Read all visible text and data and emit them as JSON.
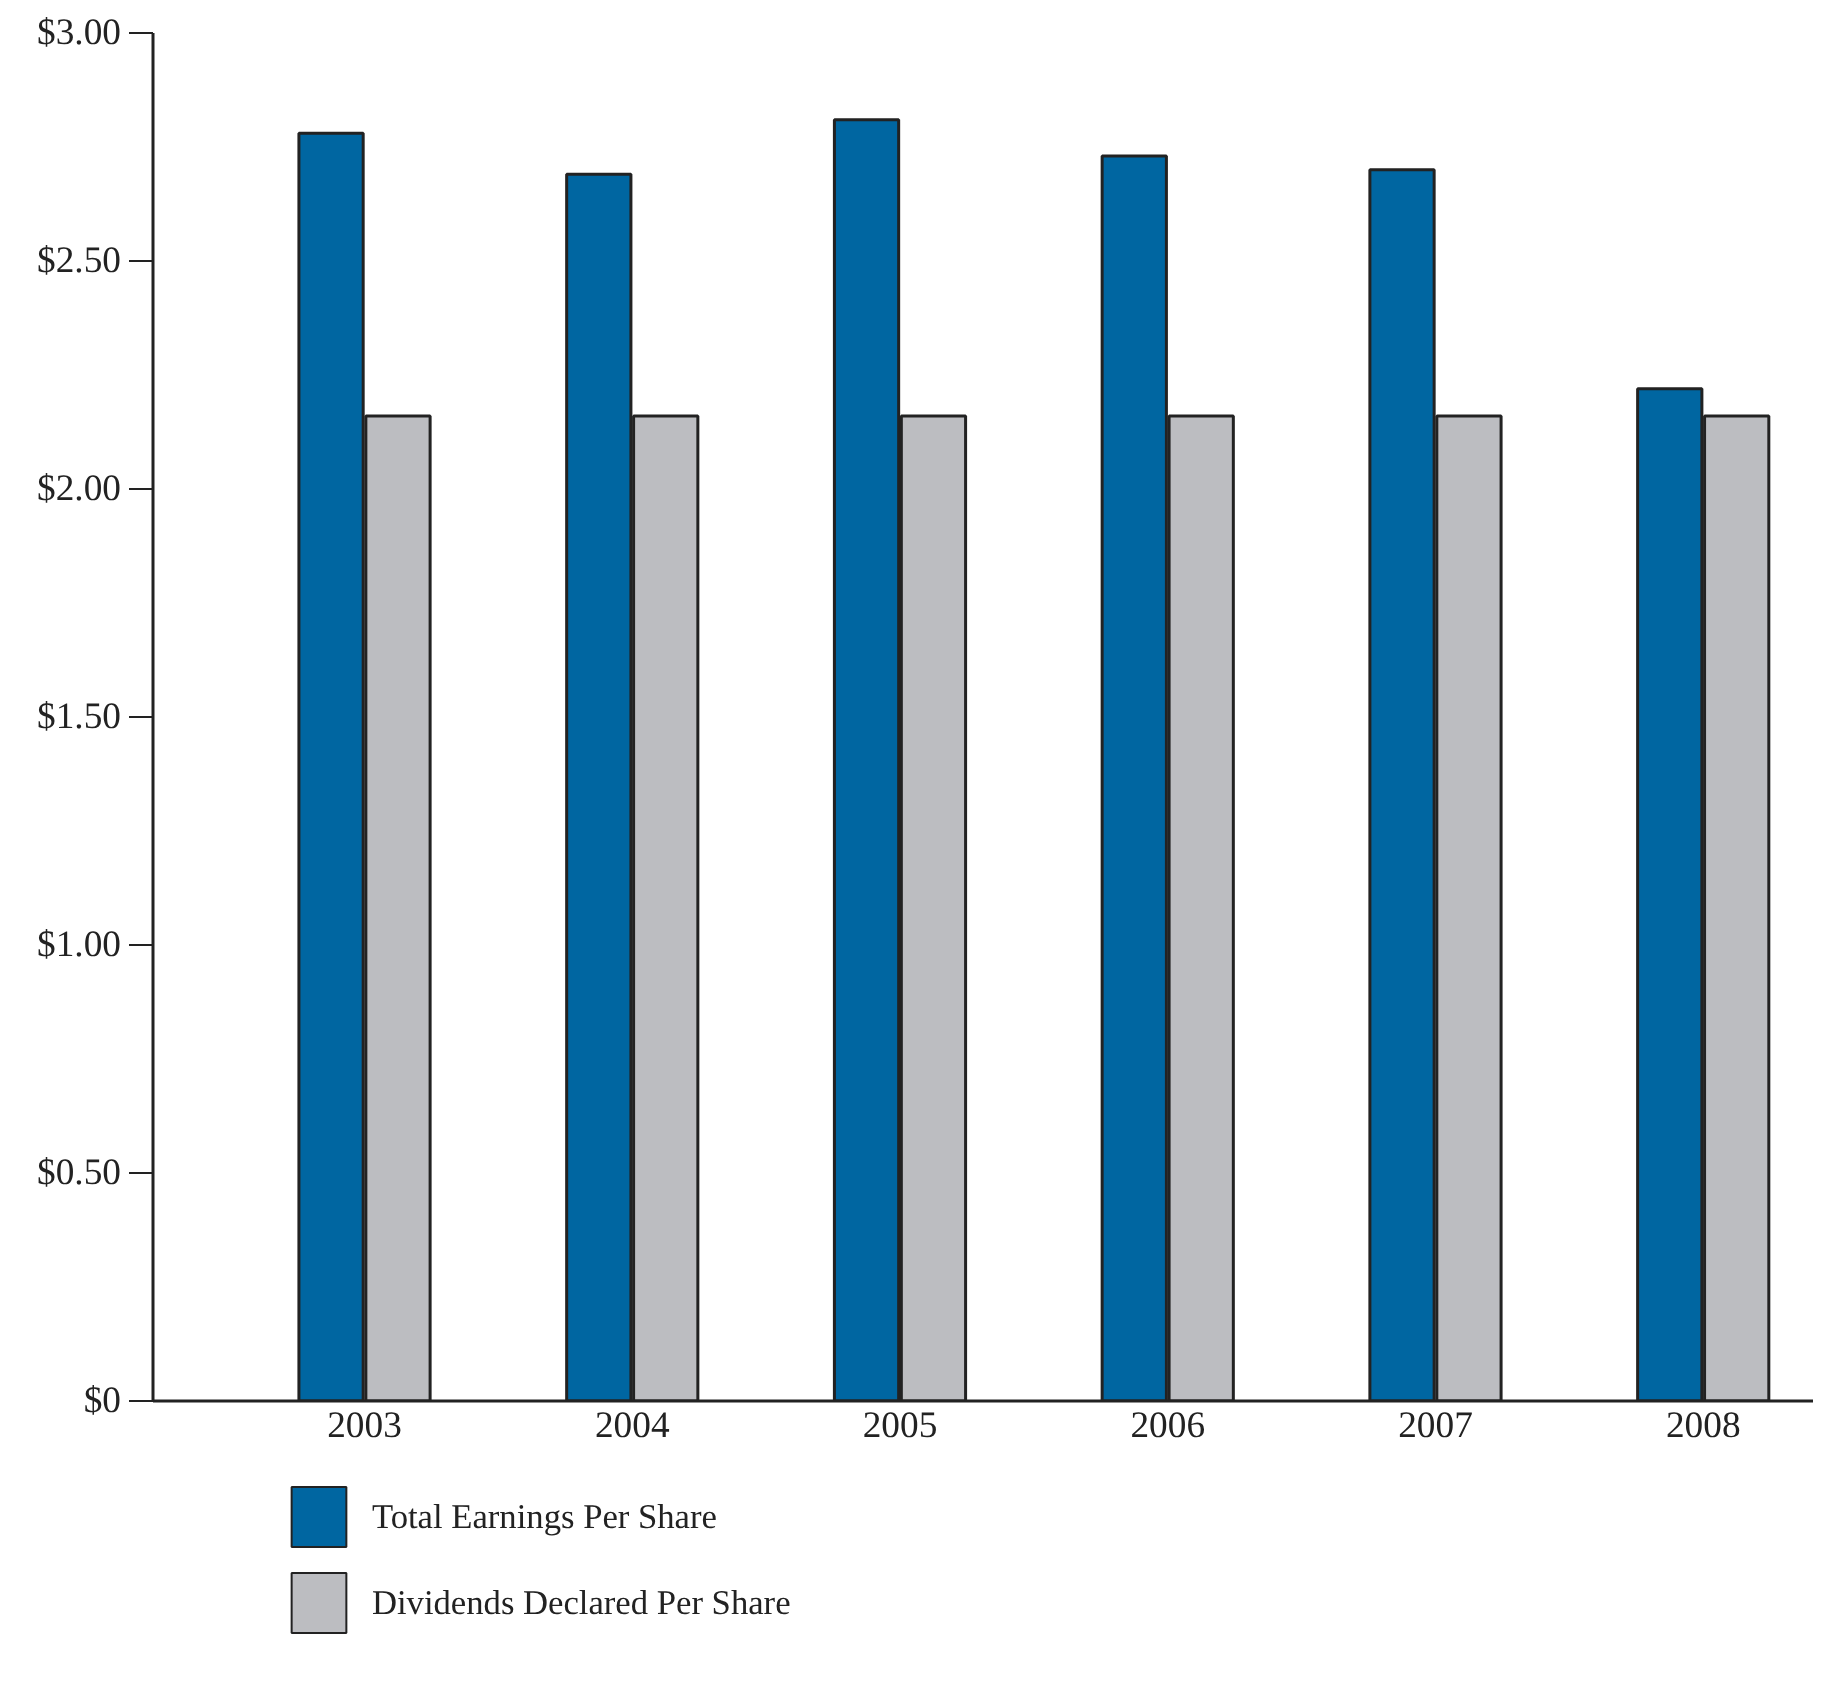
{
  "chart_data": {
    "type": "bar",
    "categories": [
      "2003",
      "2004",
      "2005",
      "2006",
      "2007",
      "2008"
    ],
    "series": [
      {
        "name": "Total Earnings Per Share",
        "color": "#0066a1",
        "values": [
          2.78,
          2.69,
          2.81,
          2.73,
          2.7,
          2.22
        ]
      },
      {
        "name": "Dividends Declared Per Share",
        "color": "#bcbdc1",
        "values": [
          2.16,
          2.16,
          2.16,
          2.16,
          2.16,
          2.16
        ]
      }
    ],
    "ylim": [
      0,
      3
    ],
    "yticks": [
      {
        "value": 0,
        "label": "$0"
      },
      {
        "value": 0.5,
        "label": "$0.50"
      },
      {
        "value": 1,
        "label": "$1.00"
      },
      {
        "value": 1.5,
        "label": "$1.50"
      },
      {
        "value": 2,
        "label": "$2.00"
      },
      {
        "value": 2.5,
        "label": "$2.50"
      },
      {
        "value": 3,
        "label": "$3.00"
      }
    ],
    "grid": false,
    "legend": "bottom left"
  }
}
